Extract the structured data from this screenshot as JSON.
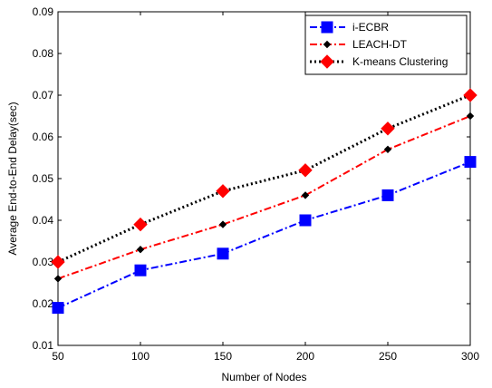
{
  "chart_data": {
    "type": "line",
    "title": "",
    "xlabel": "Number of Nodes",
    "ylabel": "Average End-to-End Delay(sec)",
    "x": [
      50,
      100,
      150,
      200,
      250,
      300
    ],
    "xlim": [
      50,
      300
    ],
    "ylim": [
      0.01,
      0.09
    ],
    "x_ticks": [
      "50",
      "100",
      "150",
      "200",
      "250",
      "300"
    ],
    "y_ticks": [
      "0.01",
      "0.02",
      "0.03",
      "0.04",
      "0.05",
      "0.06",
      "0.07",
      "0.08",
      "0.09"
    ],
    "grid": false,
    "legend_position": "top-right",
    "series": [
      {
        "name": "i-ECBR",
        "values": [
          0.019,
          0.028,
          0.032,
          0.04,
          0.046,
          0.054
        ],
        "color": "#0000ff",
        "line_style": "dash-dot",
        "marker": "square"
      },
      {
        "name": "LEACH-DT",
        "values": [
          0.026,
          0.033,
          0.039,
          0.046,
          0.057,
          0.065
        ],
        "color": "#ff0000",
        "marker_color": "#000000",
        "line_style": "dash-dot",
        "marker": "small-diamond"
      },
      {
        "name": "K-means Clustering",
        "values": [
          0.03,
          0.039,
          0.047,
          0.052,
          0.062,
          0.07
        ],
        "color": "#000000",
        "marker_color": "#ff0000",
        "line_style": "dotted",
        "marker": "diamond"
      }
    ]
  }
}
